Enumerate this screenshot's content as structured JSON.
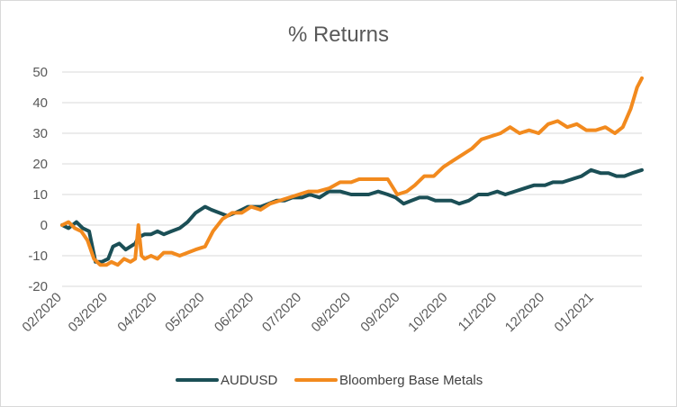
{
  "chart_data": {
    "type": "line",
    "title": "% Returns",
    "xlabel": "",
    "ylabel": "",
    "ylim": [
      -20,
      50
    ],
    "yticks": [
      -20,
      -10,
      0,
      10,
      20,
      30,
      40,
      50
    ],
    "xlim": [
      "2020-02-01",
      "2021-01-31"
    ],
    "xticks": [
      "02/2020",
      "03/2020",
      "04/2020",
      "05/2020",
      "06/2020",
      "07/2020",
      "08/2020",
      "09/2020",
      "10/2020",
      "11/2020",
      "12/2020",
      "01/2021"
    ],
    "grid": "horizontal",
    "legend": "bottom",
    "series": [
      {
        "name": "AUDUSD",
        "color": "#1b4f56",
        "x": [
          "2020-02-01",
          "2020-02-05",
          "2020-02-10",
          "2020-02-14",
          "2020-02-18",
          "2020-02-22",
          "2020-02-26",
          "2020-03-01",
          "2020-03-04",
          "2020-03-08",
          "2020-03-12",
          "2020-03-15",
          "2020-03-18",
          "2020-03-20",
          "2020-03-24",
          "2020-03-28",
          "2020-04-01",
          "2020-04-05",
          "2020-04-10",
          "2020-04-15",
          "2020-04-20",
          "2020-04-25",
          "2020-05-01",
          "2020-05-05",
          "2020-05-10",
          "2020-05-15",
          "2020-05-20",
          "2020-05-24",
          "2020-05-28",
          "2020-06-01",
          "2020-06-05",
          "2020-06-10",
          "2020-06-15",
          "2020-06-20",
          "2020-06-25",
          "2020-07-01",
          "2020-07-06",
          "2020-07-12",
          "2020-07-18",
          "2020-07-25",
          "2020-08-01",
          "2020-08-06",
          "2020-08-12",
          "2020-08-18",
          "2020-08-24",
          "2020-08-29",
          "2020-09-03",
          "2020-09-08",
          "2020-09-13",
          "2020-09-18",
          "2020-09-23",
          "2020-09-28",
          "2020-10-03",
          "2020-10-08",
          "2020-10-14",
          "2020-10-20",
          "2020-10-26",
          "2020-11-01",
          "2020-11-06",
          "2020-11-12",
          "2020-11-18",
          "2020-11-24",
          "2020-12-01",
          "2020-12-06",
          "2020-12-12",
          "2020-12-18",
          "2020-12-24",
          "2020-12-30",
          "2021-01-05",
          "2021-01-10",
          "2021-01-15",
          "2021-01-20",
          "2021-01-25",
          "2021-01-31"
        ],
        "values": [
          0,
          -1,
          1,
          -1,
          -2,
          -12,
          -12,
          -11,
          -7,
          -6,
          -8,
          -7,
          -6,
          -4,
          -3,
          -3,
          -2,
          -3,
          -2,
          -1,
          1,
          4,
          6,
          5,
          4,
          3,
          4,
          5,
          6,
          6,
          6,
          7,
          8,
          8,
          9,
          9,
          10,
          9,
          11,
          11,
          10,
          10,
          10,
          11,
          10,
          9,
          7,
          8,
          9,
          9,
          8,
          8,
          8,
          7,
          8,
          10,
          10,
          11,
          10,
          11,
          12,
          13,
          13,
          14,
          14,
          15,
          16,
          18,
          17,
          17,
          16,
          16,
          17,
          18
        ]
      },
      {
        "name": "Bloomberg Base Metals",
        "color": "#f28a1e",
        "x": [
          "2020-02-01",
          "2020-02-05",
          "2020-02-09",
          "2020-02-13",
          "2020-02-17",
          "2020-02-21",
          "2020-02-25",
          "2020-02-29",
          "2020-03-03",
          "2020-03-07",
          "2020-03-11",
          "2020-03-15",
          "2020-03-18",
          "2020-03-20",
          "2020-03-22",
          "2020-03-24",
          "2020-03-28",
          "2020-04-01",
          "2020-04-05",
          "2020-04-10",
          "2020-04-15",
          "2020-04-20",
          "2020-04-25",
          "2020-05-01",
          "2020-05-06",
          "2020-05-12",
          "2020-05-18",
          "2020-05-24",
          "2020-05-30",
          "2020-06-05",
          "2020-06-11",
          "2020-06-17",
          "2020-06-23",
          "2020-06-29",
          "2020-07-05",
          "2020-07-11",
          "2020-07-18",
          "2020-07-25",
          "2020-08-01",
          "2020-08-06",
          "2020-08-12",
          "2020-08-18",
          "2020-08-24",
          "2020-08-30",
          "2020-09-05",
          "2020-09-10",
          "2020-09-16",
          "2020-09-22",
          "2020-09-28",
          "2020-10-04",
          "2020-10-10",
          "2020-10-16",
          "2020-10-22",
          "2020-10-28",
          "2020-11-03",
          "2020-11-09",
          "2020-11-15",
          "2020-11-21",
          "2020-11-27",
          "2020-12-03",
          "2020-12-09",
          "2020-12-15",
          "2020-12-21",
          "2020-12-27",
          "2021-01-02",
          "2021-01-08",
          "2021-01-14",
          "2021-01-19",
          "2021-01-24",
          "2021-01-28",
          "2021-01-31"
        ],
        "values": [
          0,
          1,
          -1,
          -2,
          -5,
          -11,
          -13,
          -13,
          -12,
          -13,
          -11,
          -12,
          -11,
          0,
          -10,
          -11,
          -10,
          -11,
          -9,
          -9,
          -10,
          -9,
          -8,
          -7,
          -2,
          2,
          4,
          4,
          6,
          5,
          7,
          8,
          9,
          10,
          11,
          11,
          12,
          14,
          14,
          15,
          15,
          15,
          15,
          10,
          11,
          13,
          16,
          16,
          19,
          21,
          23,
          25,
          28,
          29,
          30,
          32,
          30,
          31,
          30,
          33,
          34,
          32,
          33,
          31,
          31,
          32,
          30,
          32,
          38,
          45,
          48
        ]
      }
    ]
  }
}
